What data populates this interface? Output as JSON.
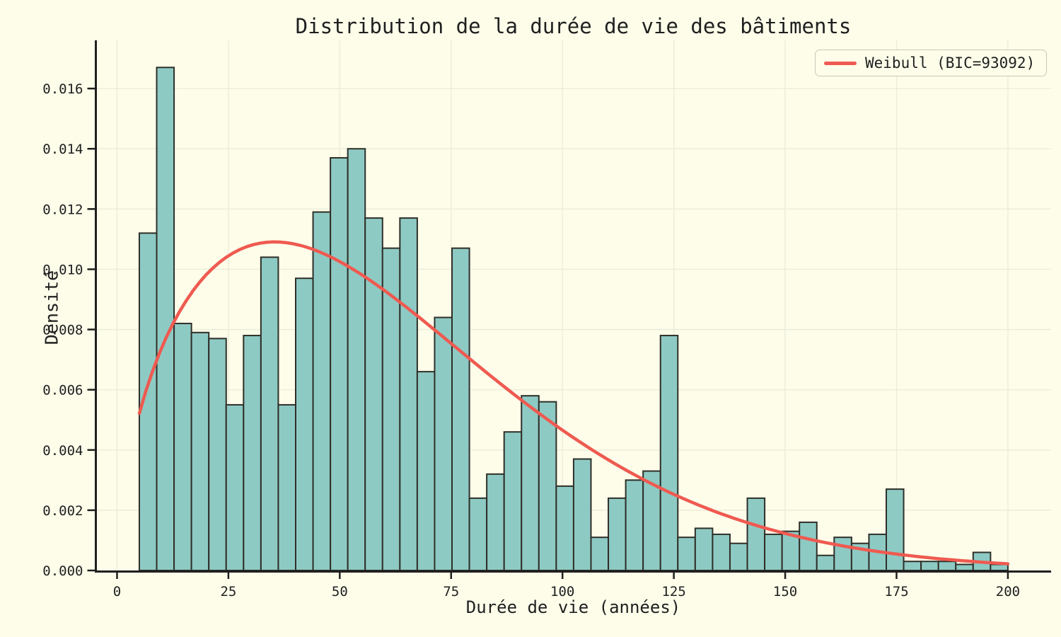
{
  "figure": {
    "title": "Distribution de la durée de vie des bâtiments",
    "background_color": "#fdfdea",
    "text_color": "#1f1f1f"
  },
  "legend": {
    "label": "Weibull (BIC=93092)",
    "swatch_color": "#ef5a50"
  },
  "chart_data": {
    "type": "bar",
    "subtype": "histogram-with-fit",
    "title": "Distribution de la durée de vie des bâtiments",
    "xlabel": "Durée de vie (années)",
    "ylabel": "Densité",
    "grid": true,
    "legend_position": "upper right",
    "bar_color": "#8ecac4",
    "bar_edge_color": "#2f2f28",
    "grid_color": "#ececda",
    "axis_color": "#1f1f1f",
    "bin_start": 5,
    "bin_width": 3.9,
    "densities": [
      0.0112,
      0.0167,
      0.0082,
      0.0079,
      0.0077,
      0.0055,
      0.0078,
      0.0104,
      0.0055,
      0.0097,
      0.0119,
      0.0137,
      0.014,
      0.0117,
      0.0107,
      0.0117,
      0.0066,
      0.0084,
      0.0107,
      0.0024,
      0.0032,
      0.0046,
      0.0058,
      0.0056,
      0.0028,
      0.0037,
      0.0011,
      0.0024,
      0.003,
      0.0033,
      0.0078,
      0.0011,
      0.0014,
      0.0012,
      0.0009,
      0.0024,
      0.0012,
      0.0013,
      0.0016,
      0.0005,
      0.0011,
      0.0009,
      0.0012,
      0.0027,
      0.0003,
      0.0003,
      0.0003,
      0.0002,
      0.0006,
      0.0002
    ],
    "x_ticks": [
      0,
      25,
      50,
      75,
      100,
      125,
      150,
      175,
      200
    ],
    "y_ticks": [
      0.0,
      0.002,
      0.004,
      0.006,
      0.008,
      0.01,
      0.012,
      0.014,
      0.016
    ],
    "y_tick_decimals": 3,
    "xlim": [
      -4.76,
      209.7
    ],
    "ylim": [
      0,
      0.0176
    ],
    "fit_curve": {
      "distribution": "weibull",
      "shape": 1.55,
      "scale": 69,
      "x_range": [
        5,
        200
      ],
      "color": "#ef5a50",
      "line_width": 4.5,
      "label": "Weibull (BIC=93092)"
    }
  }
}
